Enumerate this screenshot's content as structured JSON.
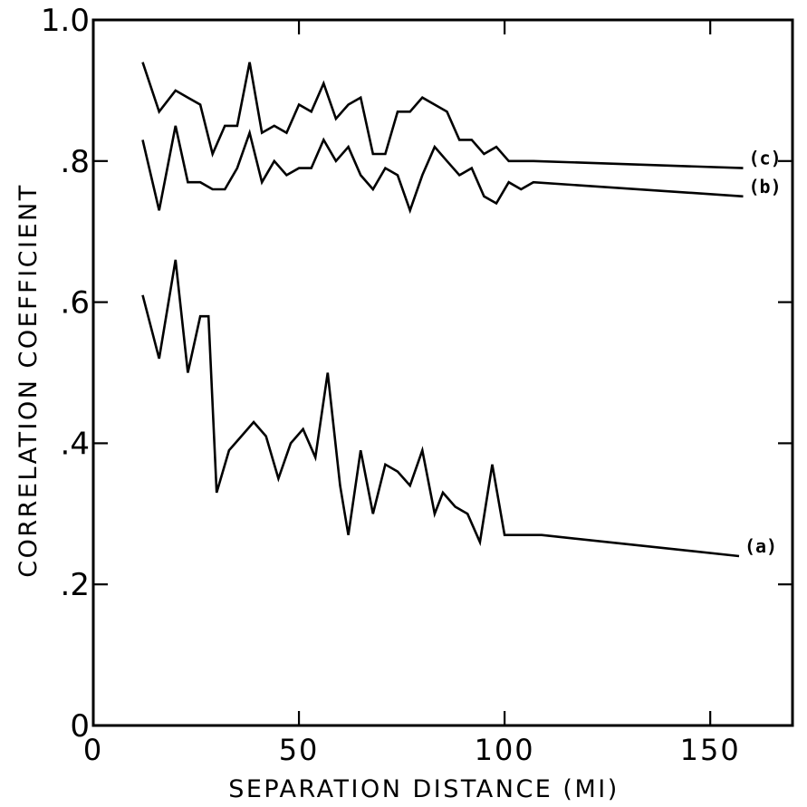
{
  "chart_data": {
    "type": "line",
    "title": "",
    "xlabel": "SEPARATION DISTANCE (MI)",
    "ylabel": "CORRELATION COEFFICIENT",
    "xlim": [
      0,
      170
    ],
    "ylim": [
      0,
      1.0
    ],
    "x_ticks": [
      0,
      50,
      100,
      150
    ],
    "x_tick_labels": [
      "0",
      "50",
      "100",
      "150"
    ],
    "y_ticks": [
      0,
      0.2,
      0.4,
      0.6,
      0.8,
      1.0
    ],
    "y_tick_labels": [
      "0",
      ".2",
      ".4",
      ".6",
      ".8",
      "1.0"
    ],
    "grid": false,
    "legend": "none",
    "series": [
      {
        "name": "(a)",
        "x": [
          12,
          16,
          20,
          23,
          26,
          28,
          30,
          33,
          36,
          39,
          42,
          45,
          48,
          51,
          54,
          57,
          60,
          62,
          65,
          68,
          71,
          74,
          77,
          80,
          83,
          85,
          88,
          91,
          94,
          97,
          100,
          103,
          106,
          109,
          157
        ],
        "y": [
          0.61,
          0.52,
          0.66,
          0.5,
          0.58,
          0.58,
          0.33,
          0.39,
          0.41,
          0.43,
          0.41,
          0.35,
          0.4,
          0.42,
          0.38,
          0.5,
          0.34,
          0.27,
          0.39,
          0.3,
          0.37,
          0.36,
          0.34,
          0.39,
          0.3,
          0.33,
          0.31,
          0.3,
          0.26,
          0.37,
          0.27,
          0.27,
          0.27,
          0.27,
          0.24
        ]
      },
      {
        "name": "(b)",
        "x": [
          12,
          16,
          20,
          23,
          26,
          29,
          32,
          35,
          38,
          41,
          44,
          47,
          50,
          53,
          56,
          59,
          62,
          65,
          68,
          71,
          74,
          77,
          80,
          83,
          86,
          89,
          92,
          95,
          98,
          101,
          104,
          107,
          158
        ],
        "y": [
          0.83,
          0.73,
          0.85,
          0.77,
          0.77,
          0.76,
          0.76,
          0.79,
          0.84,
          0.77,
          0.8,
          0.78,
          0.79,
          0.79,
          0.83,
          0.8,
          0.82,
          0.78,
          0.76,
          0.79,
          0.78,
          0.73,
          0.78,
          0.82,
          0.8,
          0.78,
          0.79,
          0.75,
          0.74,
          0.77,
          0.76,
          0.77,
          0.75
        ]
      },
      {
        "name": "(c)",
        "x": [
          12,
          16,
          20,
          23,
          26,
          29,
          32,
          35,
          38,
          41,
          44,
          47,
          50,
          53,
          56,
          59,
          62,
          65,
          68,
          71,
          74,
          77,
          80,
          83,
          86,
          89,
          92,
          95,
          98,
          101,
          104,
          107,
          158
        ],
        "y": [
          0.94,
          0.87,
          0.9,
          0.89,
          0.88,
          0.81,
          0.85,
          0.85,
          0.94,
          0.84,
          0.85,
          0.84,
          0.88,
          0.87,
          0.91,
          0.86,
          0.88,
          0.89,
          0.81,
          0.81,
          0.87,
          0.87,
          0.89,
          0.88,
          0.87,
          0.83,
          0.83,
          0.81,
          0.82,
          0.8,
          0.8,
          0.8,
          0.79
        ]
      }
    ]
  }
}
